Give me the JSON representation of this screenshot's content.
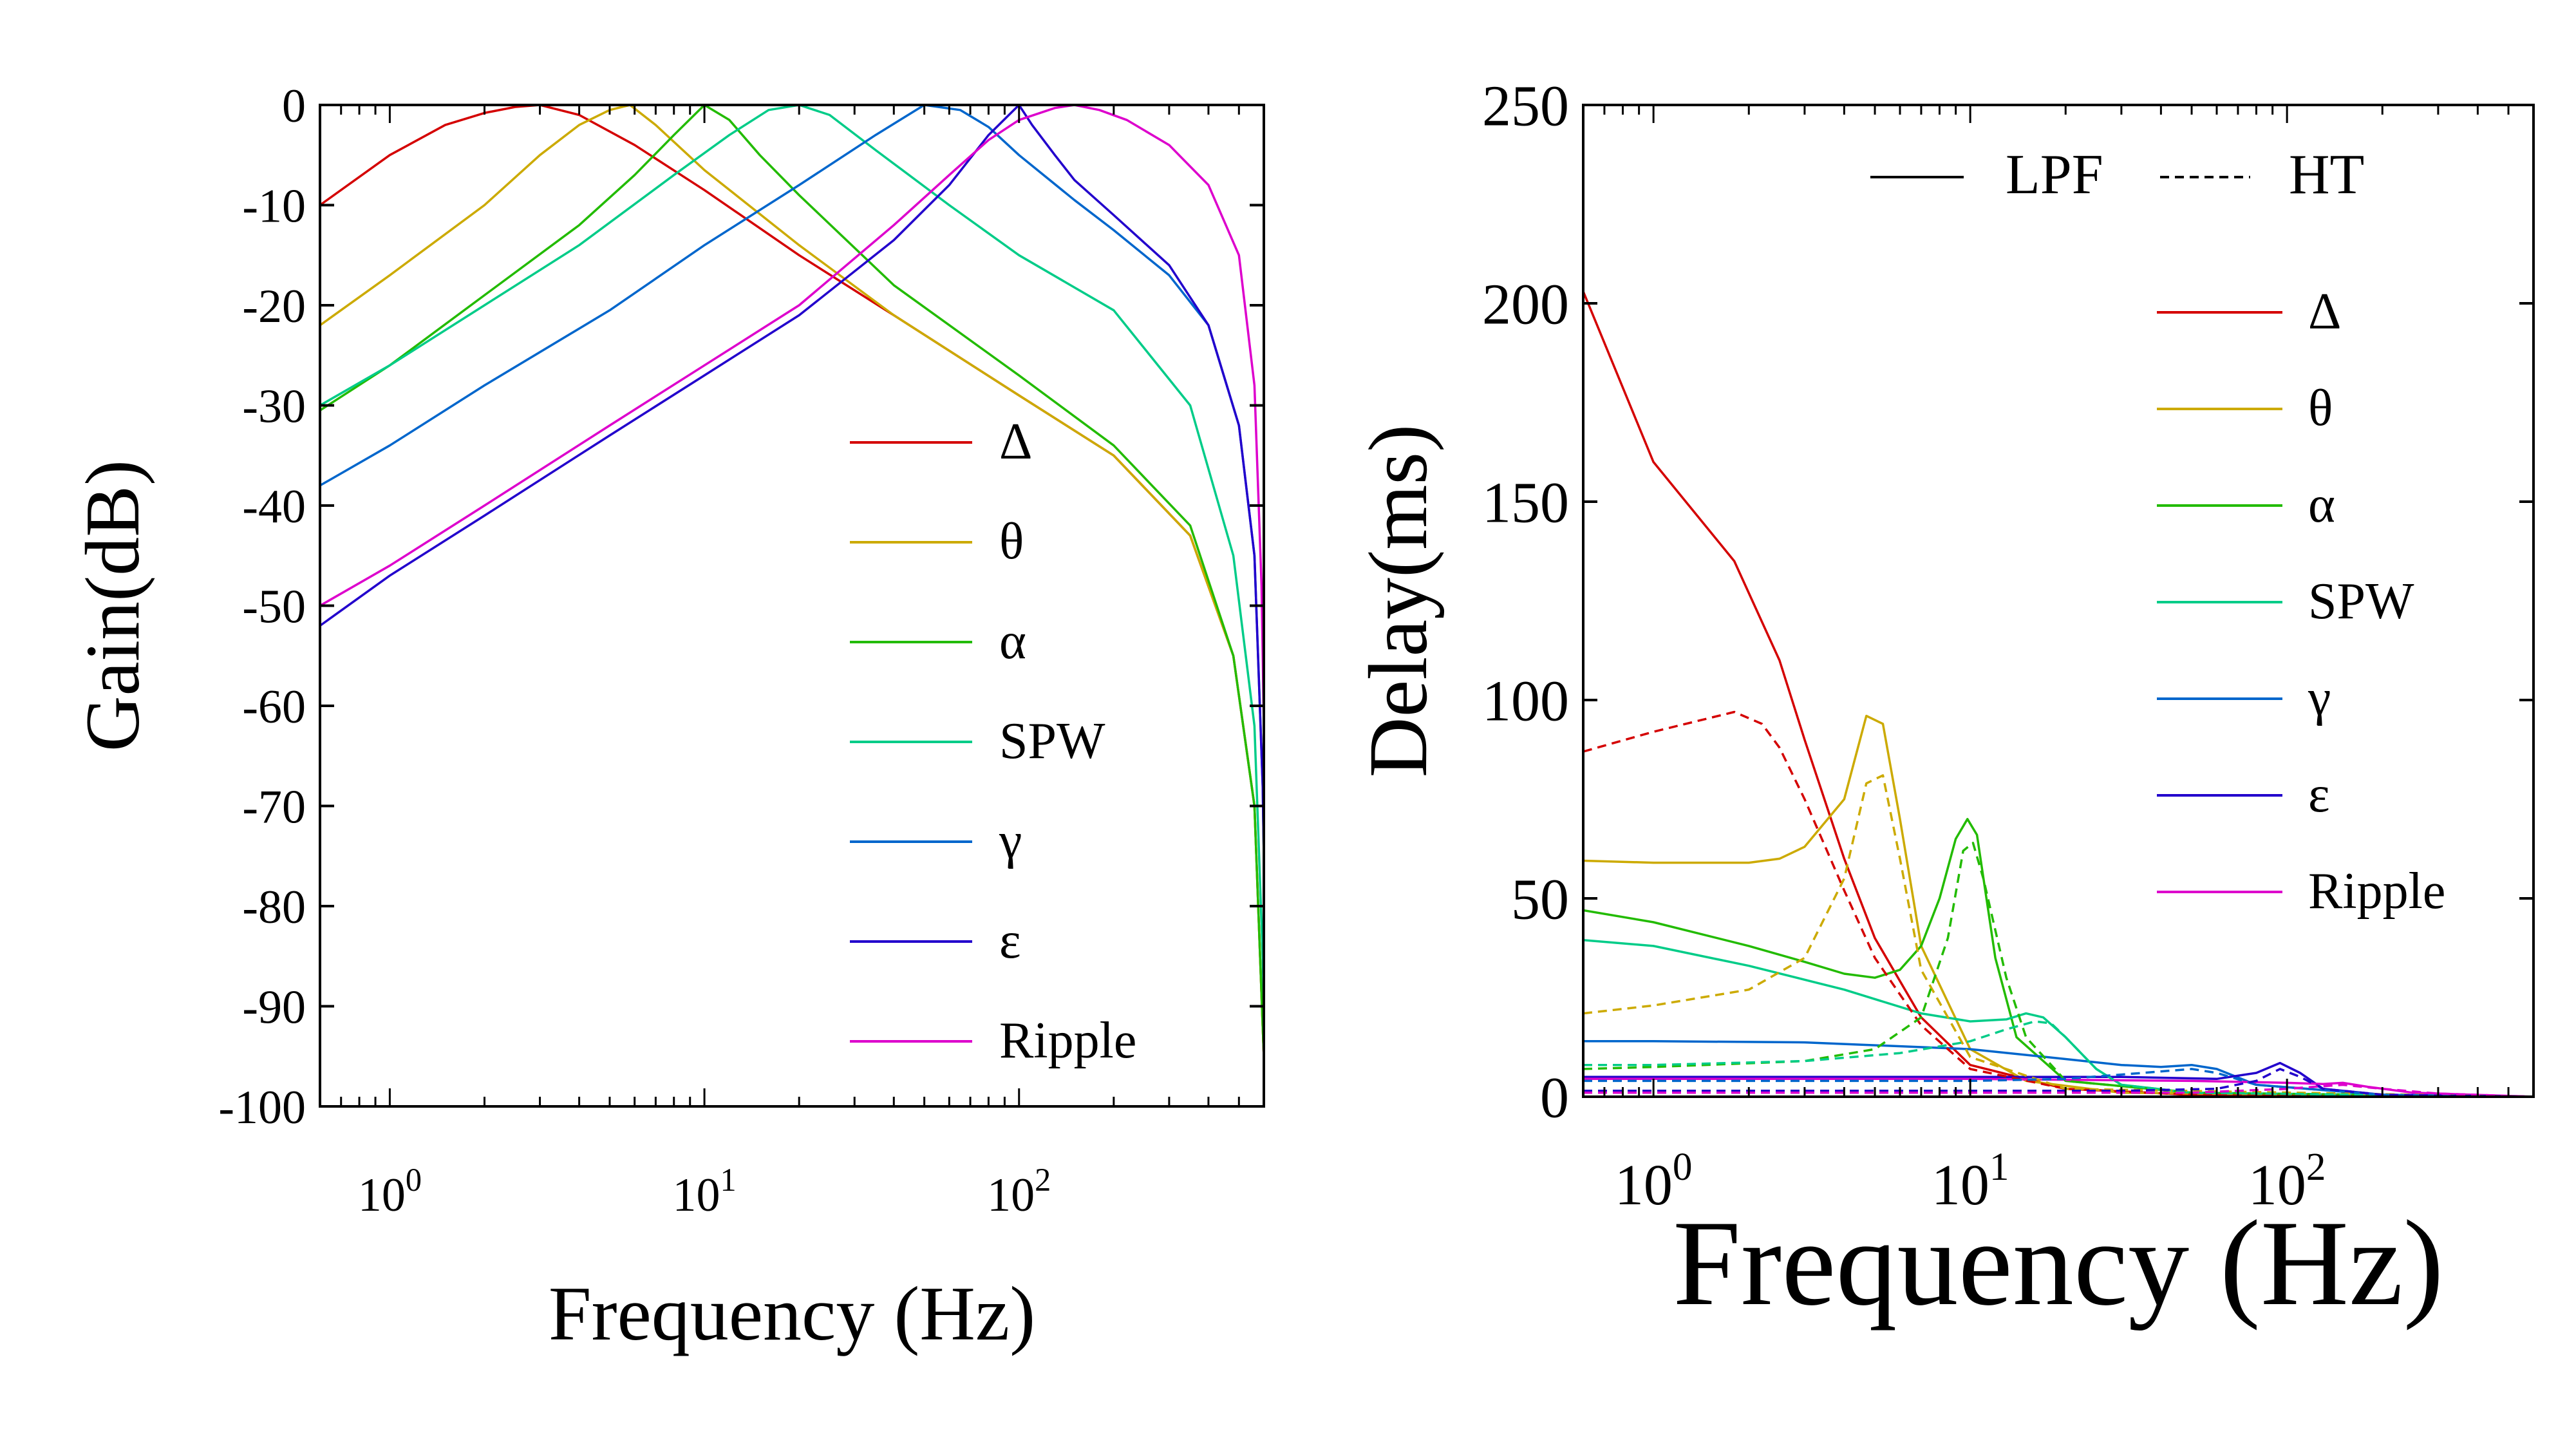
{
  "colors": {
    "delta": "#d40000",
    "theta": "#ccaa00",
    "alpha": "#22bb00",
    "spw": "#00cc88",
    "gamma": "#0066cc",
    "epsilon": "#2200cc",
    "ripple": "#dd00cc",
    "axis": "#000000"
  },
  "chart_data": [
    {
      "type": "line",
      "xlabel": "Frequency (Hz)",
      "ylabel": "Gain(dB)",
      "xscale": "log",
      "xlim": [
        0.6,
        600
      ],
      "ylim": [
        -100,
        0
      ],
      "yticks": [
        {
          "value": 0,
          "label": "0"
        },
        {
          "value": -10,
          "label": "-10"
        },
        {
          "value": -20,
          "label": "-20"
        },
        {
          "value": -30,
          "label": "-30"
        },
        {
          "value": -40,
          "label": "-40"
        },
        {
          "value": -50,
          "label": "-50"
        },
        {
          "value": -60,
          "label": "-60"
        },
        {
          "value": -70,
          "label": "-70"
        },
        {
          "value": -80,
          "label": "-80"
        },
        {
          "value": -90,
          "label": "-90"
        },
        {
          "value": -100,
          "label": "-100"
        }
      ],
      "xticks": [
        {
          "value": 1,
          "base": "10",
          "exp": "0"
        },
        {
          "value": 10,
          "base": "10",
          "exp": "1"
        },
        {
          "value": 100,
          "base": "10",
          "exp": "2"
        }
      ],
      "grid": false,
      "legend_position": "bottom-right",
      "series": [
        {
          "name": "Δ",
          "color_key": "delta",
          "x": [
            0.6,
            1,
            1.5,
            2,
            2.5,
            3,
            4,
            6,
            10,
            20,
            40,
            100,
            200,
            350,
            480,
            560,
            595,
            600
          ],
          "y": [
            -10,
            -5,
            -2,
            -0.8,
            -0.2,
            0,
            -1,
            -4,
            -8.5,
            -15,
            -21,
            -29,
            -35,
            -43,
            -55,
            -70,
            -92,
            -95
          ]
        },
        {
          "name": "θ",
          "color_key": "theta",
          "x": [
            0.6,
            1,
            2,
            3,
            4,
            5,
            5.8,
            7,
            10,
            20,
            40,
            100,
            200,
            350,
            480,
            560,
            595,
            600
          ],
          "y": [
            -22,
            -17,
            -10,
            -5,
            -2,
            -0.5,
            0,
            -2,
            -6.5,
            -14,
            -21,
            -29,
            -35,
            -43,
            -55,
            -70,
            -92,
            -95
          ]
        },
        {
          "name": "α",
          "color_key": "alpha",
          "x": [
            0.6,
            1,
            2,
            4,
            6,
            8,
            10,
            12,
            15,
            20,
            40,
            100,
            200,
            350,
            480,
            560,
            595,
            600
          ],
          "y": [
            -30.5,
            -26,
            -19,
            -12,
            -7,
            -3,
            0,
            -1.5,
            -5,
            -9,
            -18,
            -27,
            -34,
            -42,
            -55,
            -70,
            -92,
            -95
          ]
        },
        {
          "name": "SPW",
          "color_key": "spw",
          "x": [
            0.6,
            1,
            2,
            4,
            8,
            12,
            16,
            20,
            25,
            35,
            60,
            100,
            200,
            350,
            480,
            560,
            595,
            600
          ],
          "y": [
            -30,
            -26,
            -20,
            -14,
            -7,
            -3,
            -0.5,
            0,
            -1,
            -4.5,
            -10,
            -15,
            -20.5,
            -30,
            -45,
            -62,
            -85,
            -90
          ]
        },
        {
          "name": "γ",
          "color_key": "gamma",
          "x": [
            0.6,
            1,
            2,
            5,
            10,
            20,
            35,
            50,
            65,
            80,
            100,
            150,
            200,
            300,
            400,
            500,
            560,
            595,
            600
          ],
          "y": [
            -38,
            -34,
            -28,
            -20.5,
            -14,
            -8,
            -3,
            0,
            -0.5,
            -2.2,
            -5,
            -9.5,
            -12.5,
            -17,
            -22,
            -32,
            -45,
            -68,
            -75
          ]
        },
        {
          "name": "ε",
          "color_key": "epsilon",
          "x": [
            0.6,
            1,
            2,
            5,
            10,
            20,
            40,
            60,
            80,
            100,
            110,
            130,
            150,
            200,
            300,
            400,
            500,
            560,
            595,
            600
          ],
          "y": [
            -52,
            -47,
            -41,
            -33,
            -27,
            -21,
            -13.5,
            -8,
            -3,
            0,
            -2,
            -5,
            -7.5,
            -11,
            -16,
            -22,
            -32,
            -45,
            -68,
            -75
          ]
        },
        {
          "name": "Ripple",
          "color_key": "ripple",
          "x": [
            0.6,
            1,
            2,
            5,
            10,
            20,
            40,
            60,
            80,
            100,
            130,
            150,
            180,
            220,
            300,
            400,
            500,
            560,
            590,
            600
          ],
          "y": [
            -50,
            -46,
            -40,
            -32,
            -26,
            -20,
            -12,
            -7,
            -3.5,
            -1.5,
            -0.3,
            0,
            -0.5,
            -1.5,
            -4,
            -8,
            -15,
            -28,
            -48,
            -62
          ]
        }
      ]
    },
    {
      "type": "line",
      "xlabel": "Frequency (Hz)",
      "ylabel": "Delay(ms)",
      "xscale": "log",
      "xlim": [
        0.6,
        600
      ],
      "ylim": [
        0,
        250
      ],
      "yticks": [
        {
          "value": 0,
          "label": "0"
        },
        {
          "value": 50,
          "label": "50"
        },
        {
          "value": 100,
          "label": "100"
        },
        {
          "value": 150,
          "label": "150"
        },
        {
          "value": 200,
          "label": "200"
        },
        {
          "value": 250,
          "label": "250"
        }
      ],
      "xticks": [
        {
          "value": 1,
          "base": "10",
          "exp": "0"
        },
        {
          "value": 10,
          "base": "10",
          "exp": "1"
        },
        {
          "value": 100,
          "base": "10",
          "exp": "2"
        }
      ],
      "grid": false,
      "legend_position": "top-right",
      "style_legend": [
        {
          "label": "LPF",
          "dash": "solid"
        },
        {
          "label": "HT",
          "dash": "dashed"
        }
      ],
      "series": [
        {
          "name": "Δ",
          "color_key": "delta",
          "dash": "solid",
          "x": [
            0.6,
            1,
            1.8,
            2.5,
            3,
            4,
            5,
            7,
            10,
            20,
            50,
            600
          ],
          "y": [
            203,
            160,
            135,
            110,
            90,
            60,
            40,
            20,
            8,
            2,
            0.5,
            0
          ]
        },
        {
          "name": "θ",
          "color_key": "theta",
          "dash": "solid",
          "x": [
            0.6,
            1,
            2,
            2.5,
            3,
            4,
            4.7,
            5.3,
            6,
            7,
            10,
            15,
            30,
            600
          ],
          "y": [
            59.5,
            59,
            59,
            60,
            63,
            75,
            96,
            94,
            70,
            38,
            12,
            4,
            1,
            0
          ]
        },
        {
          "name": "α",
          "color_key": "alpha",
          "dash": "solid",
          "x": [
            0.6,
            1,
            2,
            3,
            4,
            5,
            6,
            7,
            8,
            9,
            9.8,
            10.5,
            12,
            14,
            20,
            50,
            600
          ],
          "y": [
            47,
            44,
            38,
            34,
            31,
            30,
            32,
            38,
            50,
            65,
            70,
            66,
            35,
            15,
            4,
            1,
            0
          ]
        },
        {
          "name": "SPW",
          "color_key": "spw",
          "dash": "solid",
          "x": [
            0.6,
            1,
            2,
            4,
            7,
            10,
            13,
            15,
            17,
            20,
            25,
            30,
            50,
            600
          ],
          "y": [
            39.5,
            38,
            33,
            27,
            21,
            19,
            19.5,
            21,
            20,
            15,
            7,
            3,
            1,
            0
          ]
        },
        {
          "name": "γ",
          "color_key": "gamma",
          "dash": "solid",
          "x": [
            0.6,
            1,
            3,
            10,
            20,
            30,
            40,
            50,
            60,
            80,
            200,
            600
          ],
          "y": [
            14,
            14,
            13.7,
            12,
            9.5,
            8,
            7.5,
            8,
            7,
            3,
            0.5,
            0
          ]
        },
        {
          "name": "ε",
          "color_key": "epsilon",
          "dash": "solid",
          "x": [
            0.6,
            1,
            10,
            30,
            60,
            80,
            95,
            110,
            130,
            200,
            600
          ],
          "y": [
            5,
            5,
            5,
            5,
            4.5,
            6,
            8.5,
            6,
            2,
            0.5,
            0
          ]
        },
        {
          "name": "Ripple",
          "color_key": "ripple",
          "dash": "solid",
          "x": [
            0.6,
            1,
            10,
            50,
            100,
            130,
            150,
            180,
            250,
            600
          ],
          "y": [
            4.5,
            4.5,
            4.5,
            4,
            3.5,
            3.2,
            3.5,
            2.5,
            1,
            0
          ]
        },
        {
          "name": "Δ (HT)",
          "color_key": "delta",
          "dash": "dashed",
          "x": [
            0.6,
            1,
            1.8,
            2.2,
            2.5,
            3,
            4,
            5,
            7,
            10,
            20,
            50,
            600
          ],
          "y": [
            87,
            92,
            97,
            94,
            88,
            75,
            52,
            35,
            18,
            7,
            2,
            0.5,
            0
          ]
        },
        {
          "name": "θ (HT)",
          "color_key": "theta",
          "dash": "dashed",
          "x": [
            0.6,
            1,
            2,
            3,
            4,
            4.7,
            5.3,
            6,
            7,
            10,
            20,
            600
          ],
          "y": [
            21,
            23,
            27,
            35,
            55,
            79,
            81,
            60,
            32,
            10,
            2,
            0
          ]
        },
        {
          "name": "α (HT)",
          "color_key": "alpha",
          "dash": "dashed",
          "x": [
            0.6,
            1,
            3,
            5,
            7,
            8.5,
            9.5,
            10.2,
            11,
            13,
            15,
            20,
            50,
            600
          ],
          "y": [
            7,
            7.5,
            9,
            12,
            20,
            40,
            62,
            64,
            55,
            30,
            15,
            4,
            1,
            0
          ]
        },
        {
          "name": "SPW (HT)",
          "color_key": "spw",
          "dash": "dashed",
          "x": [
            0.6,
            1,
            3,
            6,
            10,
            13,
            16,
            18,
            20,
            25,
            30,
            50,
            600
          ],
          "y": [
            8,
            8,
            9,
            11,
            14,
            17,
            19,
            18.5,
            15,
            7,
            3,
            1,
            0
          ]
        },
        {
          "name": "γ (HT)",
          "color_key": "gamma",
          "dash": "dashed",
          "x": [
            0.6,
            10,
            20,
            35,
            50,
            60,
            80,
            200,
            600
          ],
          "y": [
            4,
            4,
            4.5,
            6,
            7,
            6,
            3,
            0.5,
            0
          ]
        },
        {
          "name": "ε (HT)",
          "color_key": "epsilon",
          "dash": "dashed",
          "x": [
            0.6,
            30,
            60,
            80,
            95,
            110,
            130,
            200,
            600
          ],
          "y": [
            1.5,
            1.5,
            2,
            4,
            7,
            5,
            2,
            0.5,
            0
          ]
        },
        {
          "name": "Ripple (HT)",
          "color_key": "ripple",
          "dash": "dashed",
          "x": [
            0.6,
            50,
            100,
            150,
            200,
            300,
            600
          ],
          "y": [
            1,
            1,
            2,
            3,
            2,
            0.8,
            0
          ]
        }
      ]
    }
  ]
}
